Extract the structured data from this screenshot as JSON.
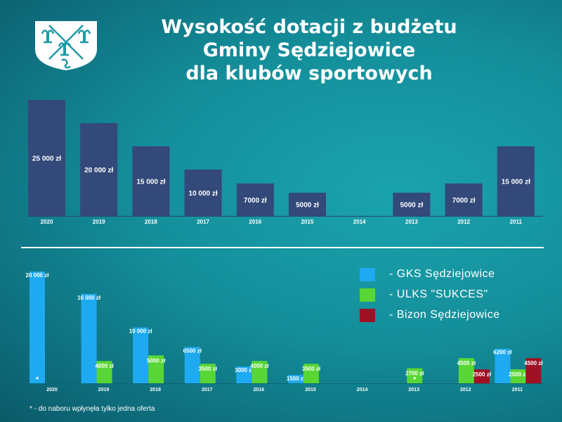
{
  "header": {
    "title_lines": [
      "Wysokość dotacji z budżetu",
      "Gminy Sędziejowice",
      "dla klubów sportowych"
    ]
  },
  "logo": {
    "icon": "coat-of-arms-icon",
    "colors": [
      "#ffffff",
      "#1c9aa6"
    ]
  },
  "colors": {
    "top_bar": "#33497a",
    "gks": "#1eaaf1",
    "ulks": "#58d635",
    "bizon": "#a01024",
    "text": "#ffffff"
  },
  "legend": [
    {
      "label": "- GKS Sędziejowice",
      "color": "#1eaaf1"
    },
    {
      "label": "- ULKS \"SUKCES\"",
      "color": "#58d635"
    },
    {
      "label": "- Bizon Sędziejowice",
      "color": "#a01024"
    }
  ],
  "footnote": "* - do naboru wpłynęła tylko jedna oferta",
  "chart_data": [
    {
      "type": "bar",
      "categories": [
        "2020",
        "2019",
        "2018",
        "2017",
        "2016",
        "2015",
        "2014",
        "2013",
        "2012",
        "2011"
      ],
      "values": [
        25000,
        20000,
        15000,
        10000,
        7000,
        5000,
        0,
        5000,
        7000,
        15000
      ],
      "data_labels": [
        "25 000 zł",
        "20 000 zł",
        "15 000 zł",
        "10 000 zł",
        "7000 zł",
        "5000 zł",
        "",
        "5000 zł",
        "7000 zł",
        "15 000 zł"
      ],
      "ylim": [
        0,
        25000
      ],
      "grid": false
    },
    {
      "type": "bar",
      "categories": [
        "2020",
        "2019",
        "2018",
        "2017",
        "2016",
        "2015",
        "2014",
        "2013",
        "2012",
        "2011"
      ],
      "series": [
        {
          "name": "- GKS Sędziejowice",
          "values": [
            20000,
            16000,
            10000,
            6500,
            3000,
            1500,
            null,
            null,
            null,
            6200
          ],
          "labels": [
            "20 000 zł",
            "16 000 zł",
            "10 000 zł",
            "6500 zł",
            "3000 zł",
            "1500 zł",
            "",
            "",
            "",
            "6200 zł"
          ]
        },
        {
          "name": "- ULKS \"SUKCES\"",
          "values": [
            null,
            4000,
            5000,
            3500,
            4000,
            3500,
            null,
            2700,
            4500,
            2500
          ],
          "labels": [
            "",
            "4000 zł",
            "5000 zł",
            "3500 zł",
            "4000 zł",
            "3500 zł",
            "",
            "2700 zł",
            "4500 zł",
            "2500 zł"
          ]
        },
        {
          "name": "- Bizon Sędziejowice",
          "values": [
            null,
            null,
            null,
            null,
            null,
            null,
            null,
            null,
            2500,
            4500
          ],
          "labels": [
            "",
            "",
            "",
            "",
            "",
            "",
            "",
            "",
            "2500 zł",
            "4500 zł"
          ]
        }
      ],
      "single_offer_marks": [
        {
          "category": "2020",
          "series": "- GKS Sędziejowice",
          "mark": "*"
        },
        {
          "category": "2013",
          "series": "- ULKS \"SUKCES\"",
          "mark": "*"
        }
      ],
      "ylim": [
        0,
        20000
      ],
      "grid": false
    }
  ]
}
